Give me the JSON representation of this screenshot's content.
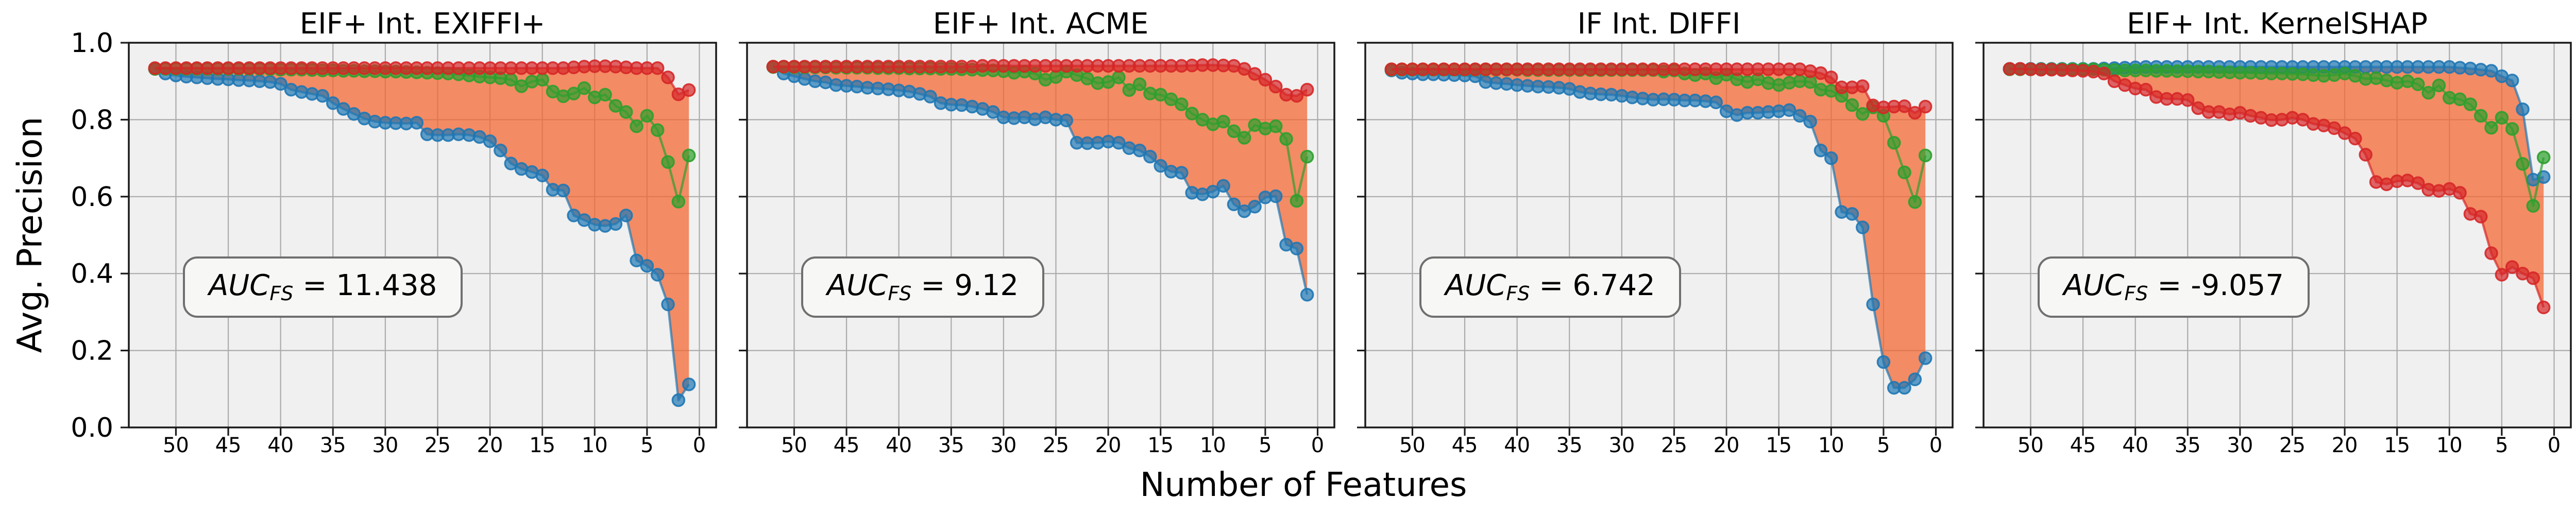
{
  "figure": {
    "ylabel": "Avg. Precision",
    "xlabel": "Number of Features",
    "background": "#ffffff",
    "axes_background": "#f0f0f0",
    "grid_color": "#ababab",
    "spine_color": "#1a1a1a",
    "fill_color": "#f4642e",
    "series_colors": {
      "blue": "#1f77b4",
      "green": "#2ca02c",
      "red": "#d62728"
    }
  },
  "chart_data": [
    {
      "type": "line",
      "title": "EIF+ Int. EXIFFI+",
      "auc": {
        "label": "AUC",
        "subscript": "FS",
        "separator": "=",
        "value": "11.438"
      },
      "x_start": 52,
      "x_end": 1,
      "x_step": -1,
      "xlim": [
        54.5,
        -1.6
      ],
      "ylim": [
        0,
        1
      ],
      "xticks": [
        50,
        45,
        40,
        35,
        30,
        25,
        20,
        15,
        10,
        5,
        0
      ],
      "yticks": [
        1.0,
        0.8,
        0.6,
        0.4,
        0.2,
        0.0
      ],
      "ytick_labels": [
        "1.0",
        "0.8",
        "0.6",
        "0.4",
        "0.2",
        "0.0"
      ],
      "show_ytick_labels": true,
      "grid": true,
      "x_inverted": true,
      "fill_between": [
        "blue",
        "red"
      ],
      "series": [
        {
          "name": "blue",
          "color": "#1f77b4",
          "values": [
            0.932,
            0.92,
            0.915,
            0.912,
            0.91,
            0.908,
            0.906,
            0.905,
            0.903,
            0.902,
            0.9,
            0.898,
            0.893,
            0.878,
            0.872,
            0.867,
            0.862,
            0.843,
            0.828,
            0.815,
            0.803,
            0.795,
            0.792,
            0.791,
            0.79,
            0.792,
            0.762,
            0.76,
            0.76,
            0.762,
            0.76,
            0.755,
            0.744,
            0.72,
            0.686,
            0.672,
            0.664,
            0.655,
            0.618,
            0.616,
            0.551,
            0.539,
            0.527,
            0.524,
            0.529,
            0.551,
            0.434,
            0.42,
            0.397,
            0.32,
            0.071,
            0.112
          ]
        },
        {
          "name": "green",
          "color": "#2ca02c",
          "values": [
            0.932,
            0.932,
            0.932,
            0.932,
            0.932,
            0.932,
            0.932,
            0.932,
            0.932,
            0.932,
            0.932,
            0.931,
            0.93,
            0.93,
            0.93,
            0.929,
            0.928,
            0.928,
            0.927,
            0.927,
            0.926,
            0.926,
            0.925,
            0.925,
            0.924,
            0.923,
            0.922,
            0.921,
            0.92,
            0.918,
            0.915,
            0.912,
            0.91,
            0.908,
            0.904,
            0.887,
            0.899,
            0.904,
            0.873,
            0.861,
            0.868,
            0.882,
            0.858,
            0.865,
            0.836,
            0.82,
            0.783,
            0.81,
            0.773,
            0.69,
            0.587,
            0.707
          ]
        },
        {
          "name": "red",
          "color": "#d62728",
          "values": [
            0.934,
            0.934,
            0.934,
            0.934,
            0.934,
            0.934,
            0.934,
            0.934,
            0.934,
            0.934,
            0.934,
            0.934,
            0.934,
            0.934,
            0.934,
            0.934,
            0.934,
            0.934,
            0.934,
            0.934,
            0.934,
            0.934,
            0.934,
            0.934,
            0.934,
            0.934,
            0.934,
            0.934,
            0.934,
            0.934,
            0.934,
            0.934,
            0.934,
            0.934,
            0.934,
            0.934,
            0.934,
            0.934,
            0.934,
            0.934,
            0.936,
            0.938,
            0.939,
            0.939,
            0.938,
            0.936,
            0.934,
            0.934,
            0.934,
            0.91,
            0.866,
            0.877
          ]
        }
      ]
    },
    {
      "type": "line",
      "title": "EIF+ Int. ACME",
      "auc": {
        "label": "AUC",
        "subscript": "FS",
        "separator": "=",
        "value": "9.12"
      },
      "x_start": 52,
      "x_end": 1,
      "x_step": -1,
      "xlim": [
        54.5,
        -1.6
      ],
      "ylim": [
        0,
        1
      ],
      "xticks": [
        50,
        45,
        40,
        35,
        30,
        25,
        20,
        15,
        10,
        5,
        0
      ],
      "yticks": [
        1.0,
        0.8,
        0.6,
        0.4,
        0.2,
        0.0
      ],
      "ytick_labels": [],
      "show_ytick_labels": false,
      "grid": true,
      "x_inverted": true,
      "fill_between": [
        "blue",
        "red"
      ],
      "series": [
        {
          "name": "blue",
          "color": "#1f77b4",
          "values": [
            0.937,
            0.92,
            0.913,
            0.906,
            0.9,
            0.897,
            0.89,
            0.888,
            0.886,
            0.883,
            0.881,
            0.879,
            0.876,
            0.873,
            0.867,
            0.86,
            0.843,
            0.839,
            0.838,
            0.834,
            0.828,
            0.82,
            0.806,
            0.804,
            0.806,
            0.801,
            0.806,
            0.8,
            0.798,
            0.74,
            0.739,
            0.74,
            0.743,
            0.74,
            0.726,
            0.72,
            0.704,
            0.68,
            0.665,
            0.662,
            0.61,
            0.606,
            0.613,
            0.628,
            0.58,
            0.562,
            0.574,
            0.598,
            0.601,
            0.475,
            0.465,
            0.345
          ]
        },
        {
          "name": "green",
          "color": "#2ca02c",
          "values": [
            0.937,
            0.937,
            0.936,
            0.936,
            0.936,
            0.936,
            0.935,
            0.935,
            0.935,
            0.935,
            0.934,
            0.934,
            0.934,
            0.933,
            0.933,
            0.933,
            0.932,
            0.932,
            0.931,
            0.93,
            0.929,
            0.928,
            0.926,
            0.922,
            0.925,
            0.92,
            0.904,
            0.911,
            0.925,
            0.916,
            0.907,
            0.895,
            0.898,
            0.91,
            0.877,
            0.892,
            0.868,
            0.865,
            0.853,
            0.84,
            0.816,
            0.8,
            0.788,
            0.795,
            0.77,
            0.753,
            0.786,
            0.777,
            0.783,
            0.75,
            0.589,
            0.704
          ]
        },
        {
          "name": "red",
          "color": "#d62728",
          "values": [
            0.938,
            0.938,
            0.938,
            0.938,
            0.938,
            0.938,
            0.938,
            0.938,
            0.938,
            0.938,
            0.938,
            0.938,
            0.938,
            0.938,
            0.938,
            0.938,
            0.938,
            0.938,
            0.938,
            0.938,
            0.94,
            0.94,
            0.94,
            0.94,
            0.94,
            0.94,
            0.94,
            0.94,
            0.94,
            0.94,
            0.94,
            0.94,
            0.94,
            0.94,
            0.94,
            0.94,
            0.94,
            0.94,
            0.94,
            0.94,
            0.941,
            0.942,
            0.942,
            0.941,
            0.94,
            0.932,
            0.919,
            0.904,
            0.886,
            0.865,
            0.862,
            0.878
          ]
        }
      ]
    },
    {
      "type": "line",
      "title": "IF Int. DIFFI",
      "auc": {
        "label": "AUC",
        "subscript": "FS",
        "separator": "=",
        "value": "6.742"
      },
      "x_start": 52,
      "x_end": 1,
      "x_step": -1,
      "xlim": [
        54.5,
        -1.6
      ],
      "ylim": [
        0,
        1
      ],
      "xticks": [
        50,
        45,
        40,
        35,
        30,
        25,
        20,
        15,
        10,
        5,
        0
      ],
      "yticks": [
        1.0,
        0.8,
        0.6,
        0.4,
        0.2,
        0.0
      ],
      "ytick_labels": [],
      "show_ytick_labels": false,
      "grid": true,
      "x_inverted": true,
      "fill_between": [
        "blue",
        "red"
      ],
      "series": [
        {
          "name": "blue",
          "color": "#1f77b4",
          "values": [
            0.928,
            0.922,
            0.92,
            0.918,
            0.918,
            0.917,
            0.916,
            0.915,
            0.913,
            0.898,
            0.895,
            0.893,
            0.89,
            0.888,
            0.886,
            0.885,
            0.883,
            0.88,
            0.872,
            0.868,
            0.866,
            0.865,
            0.862,
            0.858,
            0.855,
            0.852,
            0.853,
            0.852,
            0.85,
            0.85,
            0.848,
            0.845,
            0.822,
            0.812,
            0.818,
            0.818,
            0.82,
            0.822,
            0.825,
            0.81,
            0.795,
            0.72,
            0.7,
            0.56,
            0.555,
            0.52,
            0.32,
            0.17,
            0.103,
            0.103,
            0.125,
            0.18
          ]
        },
        {
          "name": "green",
          "color": "#2ca02c",
          "values": [
            0.93,
            0.93,
            0.93,
            0.93,
            0.93,
            0.93,
            0.93,
            0.93,
            0.93,
            0.93,
            0.93,
            0.93,
            0.93,
            0.929,
            0.929,
            0.929,
            0.929,
            0.929,
            0.929,
            0.929,
            0.929,
            0.929,
            0.929,
            0.929,
            0.929,
            0.929,
            0.925,
            0.928,
            0.92,
            0.916,
            0.92,
            0.908,
            0.917,
            0.905,
            0.898,
            0.905,
            0.895,
            0.89,
            0.896,
            0.9,
            0.898,
            0.878,
            0.875,
            0.862,
            0.838,
            0.815,
            0.832,
            0.81,
            0.74,
            0.663,
            0.586,
            0.707
          ]
        },
        {
          "name": "red",
          "color": "#d62728",
          "values": [
            0.931,
            0.931,
            0.931,
            0.931,
            0.931,
            0.931,
            0.931,
            0.931,
            0.931,
            0.931,
            0.931,
            0.931,
            0.931,
            0.931,
            0.931,
            0.931,
            0.931,
            0.931,
            0.931,
            0.931,
            0.931,
            0.931,
            0.931,
            0.931,
            0.931,
            0.931,
            0.931,
            0.931,
            0.931,
            0.931,
            0.931,
            0.931,
            0.931,
            0.931,
            0.931,
            0.931,
            0.931,
            0.931,
            0.931,
            0.931,
            0.926,
            0.921,
            0.91,
            0.884,
            0.884,
            0.887,
            0.837,
            0.832,
            0.834,
            0.835,
            0.818,
            0.834
          ]
        }
      ]
    },
    {
      "type": "line",
      "title": "EIF+ Int. KernelSHAP",
      "auc": {
        "label": "AUC",
        "subscript": "FS",
        "separator": "=",
        "value": "-9.057"
      },
      "x_start": 52,
      "x_end": 1,
      "x_step": -1,
      "xlim": [
        54.5,
        -1.6
      ],
      "ylim": [
        0,
        1
      ],
      "xticks": [
        50,
        45,
        40,
        35,
        30,
        25,
        20,
        15,
        10,
        5,
        0
      ],
      "yticks": [
        1.0,
        0.8,
        0.6,
        0.4,
        0.2,
        0.0
      ],
      "ytick_labels": [],
      "show_ytick_labels": false,
      "grid": true,
      "x_inverted": true,
      "fill_between": [
        "blue",
        "red"
      ],
      "series": [
        {
          "name": "blue",
          "color": "#1f77b4",
          "values": [
            0.932,
            0.932,
            0.932,
            0.932,
            0.932,
            0.932,
            0.932,
            0.932,
            0.932,
            0.933,
            0.934,
            0.935,
            0.936,
            0.937,
            0.937,
            0.937,
            0.937,
            0.937,
            0.937,
            0.937,
            0.937,
            0.937,
            0.937,
            0.937,
            0.937,
            0.937,
            0.937,
            0.937,
            0.937,
            0.937,
            0.937,
            0.937,
            0.937,
            0.937,
            0.937,
            0.937,
            0.937,
            0.937,
            0.937,
            0.937,
            0.937,
            0.937,
            0.937,
            0.935,
            0.933,
            0.93,
            0.927,
            0.913,
            0.902,
            0.827,
            0.644,
            0.651
          ]
        },
        {
          "name": "green",
          "color": "#2ca02c",
          "values": [
            0.931,
            0.931,
            0.931,
            0.931,
            0.931,
            0.931,
            0.931,
            0.931,
            0.931,
            0.93,
            0.929,
            0.928,
            0.928,
            0.928,
            0.927,
            0.927,
            0.926,
            0.926,
            0.925,
            0.925,
            0.924,
            0.923,
            0.922,
            0.922,
            0.921,
            0.92,
            0.92,
            0.919,
            0.918,
            0.916,
            0.914,
            0.916,
            0.92,
            0.914,
            0.906,
            0.908,
            0.902,
            0.896,
            0.9,
            0.892,
            0.87,
            0.889,
            0.857,
            0.853,
            0.84,
            0.81,
            0.779,
            0.805,
            0.776,
            0.685,
            0.576,
            0.702
          ]
        },
        {
          "name": "red",
          "color": "#d62728",
          "values": [
            0.932,
            0.932,
            0.931,
            0.93,
            0.93,
            0.929,
            0.928,
            0.927,
            0.925,
            0.92,
            0.9,
            0.89,
            0.881,
            0.878,
            0.859,
            0.854,
            0.854,
            0.851,
            0.83,
            0.82,
            0.82,
            0.814,
            0.818,
            0.81,
            0.805,
            0.799,
            0.8,
            0.805,
            0.8,
            0.789,
            0.785,
            0.778,
            0.765,
            0.751,
            0.709,
            0.638,
            0.632,
            0.64,
            0.642,
            0.635,
            0.618,
            0.615,
            0.62,
            0.61,
            0.555,
            0.548,
            0.453,
            0.397,
            0.417,
            0.4,
            0.388,
            0.312
          ]
        }
      ]
    }
  ]
}
